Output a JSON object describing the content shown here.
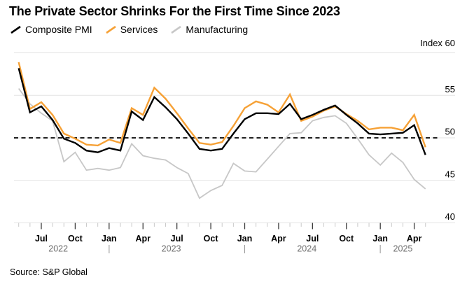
{
  "title": "The Private Sector Shrinks For the First Time Since 2023",
  "legend": {
    "items": [
      {
        "label": "Composite PMI",
        "color": "#000000"
      },
      {
        "label": "Services",
        "color": "#F6A136"
      },
      {
        "label": "Manufacturing",
        "color": "#C7C7C7"
      }
    ]
  },
  "axis": {
    "index_label": "Index 60"
  },
  "source": "Source: S&P Global",
  "chart_data": {
    "type": "line",
    "title": "The Private Sector Shrinks For the First Time Since 2023",
    "x_unit": "month",
    "x_range": "May 2022 - May 2025",
    "months": [
      "May",
      "Jun",
      "Jul",
      "Aug",
      "Sep",
      "Oct",
      "Nov",
      "Dec",
      "Jan",
      "Feb",
      "Mar",
      "Apr",
      "May",
      "Jun",
      "Jul",
      "Aug",
      "Sep",
      "Oct",
      "Nov",
      "Dec",
      "Jan",
      "Feb",
      "Mar",
      "Apr",
      "May",
      "Jun",
      "Jul",
      "Aug",
      "Sep",
      "Oct",
      "Nov",
      "Dec",
      "Jan",
      "Feb",
      "Mar",
      "Apr",
      "May"
    ],
    "years": [
      {
        "label": "2022",
        "start": 0,
        "end": 7,
        "separator": false
      },
      {
        "label": "2023",
        "start": 8,
        "end": 19,
        "separator": true
      },
      {
        "label": "2024",
        "start": 20,
        "end": 31,
        "separator": true
      },
      {
        "label": "2025",
        "start": 32,
        "end": 36,
        "separator": true
      }
    ],
    "x_major_tick_months": [
      "Jan",
      "Apr",
      "Jul",
      "Oct"
    ],
    "ylim": [
      40,
      60
    ],
    "y_gridlines": [
      60,
      55,
      50,
      45,
      40
    ],
    "threshold": 50,
    "legend_position": "top-left",
    "series": [
      {
        "name": "Composite PMI",
        "color": "#000000",
        "width": 2.4,
        "values": [
          58.2,
          53.0,
          53.7,
          52.1,
          49.9,
          49.4,
          48.5,
          48.3,
          48.8,
          48.5,
          53.1,
          52.1,
          54.8,
          53.6,
          52.2,
          50.5,
          48.7,
          48.5,
          48.7,
          50.5,
          52.2,
          52.9,
          52.9,
          52.8,
          54.0,
          52.2,
          52.7,
          53.3,
          53.8,
          52.7,
          51.7,
          50.5,
          50.4,
          50.5,
          50.6,
          51.5,
          48.0
        ]
      },
      {
        "name": "Services",
        "color": "#F6A136",
        "width": 2.4,
        "values": [
          58.9,
          53.4,
          54.2,
          52.7,
          50.5,
          49.9,
          49.2,
          49.1,
          49.8,
          49.4,
          53.5,
          52.7,
          55.9,
          54.6,
          52.9,
          51.1,
          49.4,
          49.2,
          49.5,
          51.4,
          53.5,
          54.3,
          53.9,
          53.0,
          55.1,
          52.0,
          52.5,
          53.2,
          53.7,
          52.8,
          52.0,
          51.0,
          51.2,
          51.2,
          50.9,
          52.7,
          48.9
        ]
      },
      {
        "name": "Manufacturing",
        "color": "#C7C7C7",
        "width": 1.8,
        "values": [
          55.8,
          54.0,
          52.9,
          52.0,
          47.2,
          48.3,
          46.2,
          46.4,
          46.2,
          46.5,
          49.3,
          47.9,
          47.6,
          47.4,
          46.5,
          45.8,
          42.9,
          43.8,
          44.4,
          47.0,
          46.1,
          46.0,
          47.5,
          49.0,
          50.5,
          50.6,
          52.0,
          52.4,
          52.6,
          51.7,
          49.9,
          48.0,
          46.8,
          48.2,
          47.1,
          45.1,
          44.0
        ]
      }
    ]
  }
}
